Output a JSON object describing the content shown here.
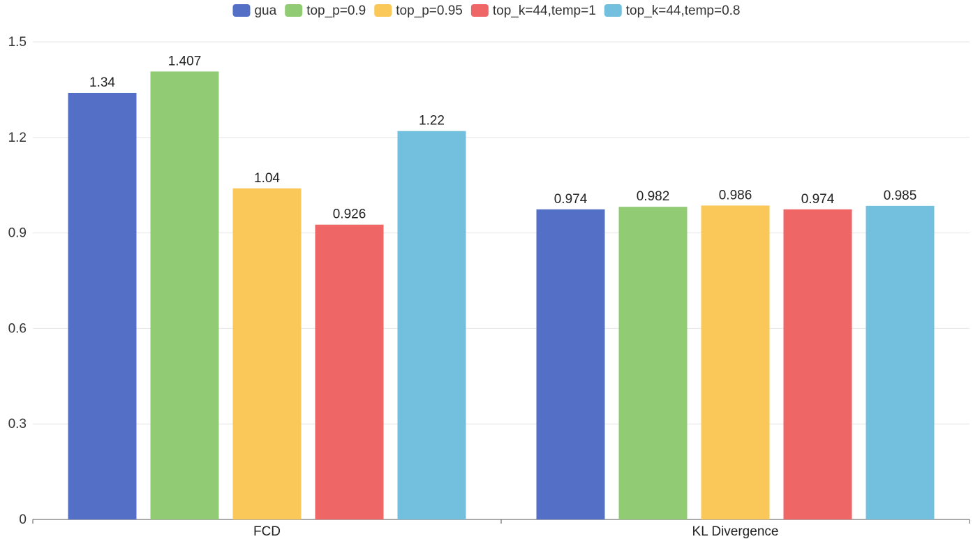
{
  "chart_data": {
    "type": "bar",
    "categories": [
      "FCD",
      "KL Divergence"
    ],
    "series": [
      {
        "name": "gua",
        "color": "#5470c6",
        "values": [
          1.34,
          0.974
        ]
      },
      {
        "name": "top_p=0.9",
        "color": "#91cc75",
        "values": [
          1.407,
          0.982
        ]
      },
      {
        "name": "top_p=0.95",
        "color": "#fac858",
        "values": [
          1.04,
          0.986
        ]
      },
      {
        "name": "top_k=44,temp=1",
        "color": "#ee6666",
        "values": [
          0.926,
          0.974
        ]
      },
      {
        "name": "top_k=44,temp=0.8",
        "color": "#73c0de",
        "values": [
          1.22,
          0.985
        ]
      }
    ],
    "data_labels": [
      [
        "1.34",
        "0.974"
      ],
      [
        "1.407",
        "0.982"
      ],
      [
        "1.04",
        "0.986"
      ],
      [
        "0.926",
        "0.974"
      ],
      [
        "1.22",
        "0.985"
      ]
    ],
    "ylim": [
      0,
      1.5
    ],
    "yticks": [
      0,
      0.3,
      0.6,
      0.9,
      1.2,
      1.5
    ],
    "ytick_labels": [
      "0",
      "0.3",
      "0.6",
      "0.9",
      "1.2",
      "1.5"
    ],
    "grid": true,
    "legend_position": "top-center"
  }
}
